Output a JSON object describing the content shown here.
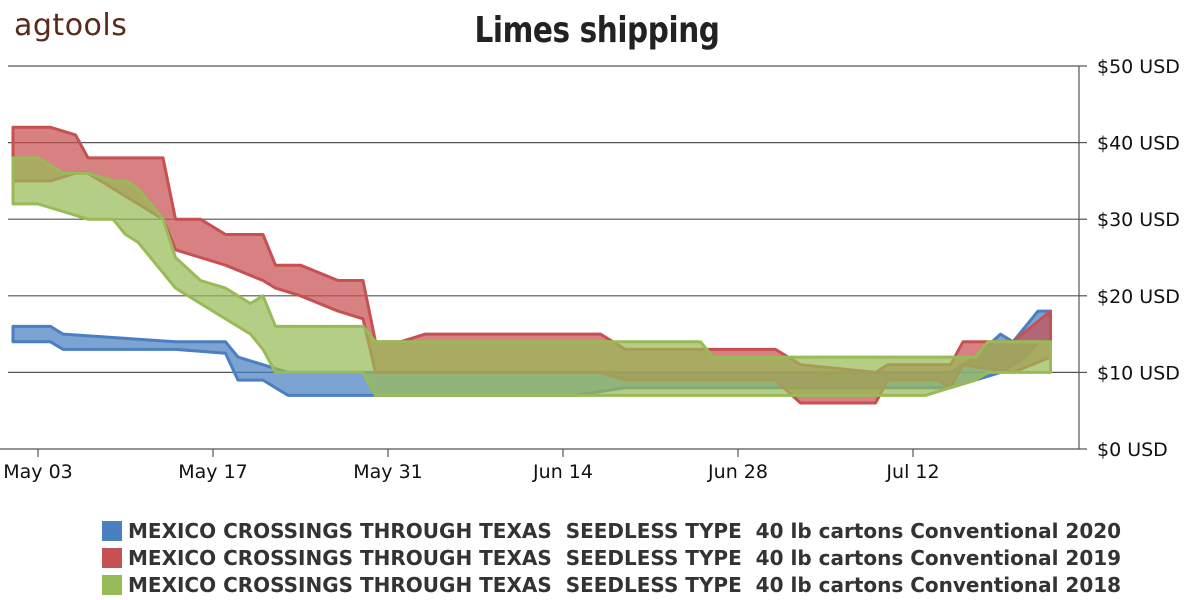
{
  "logo": "agtools",
  "chart_data": {
    "type": "area",
    "title": "Limes shipping",
    "xlabel": "",
    "ylabel": "",
    "ylim": [
      0,
      50
    ],
    "y_ticks": [
      "$0 USD",
      "$10 USD",
      "$20 USD",
      "$30 USD",
      "$40 USD",
      "$50 USD"
    ],
    "y_tick_values": [
      0,
      10,
      20,
      30,
      40,
      50
    ],
    "x_ticks": [
      "May 03",
      "May 17",
      "May 31",
      "Jun 14",
      "Jun 28",
      "Jul 12"
    ],
    "x_tick_days": [
      3,
      17,
      31,
      45,
      59,
      73
    ],
    "xlim_days": [
      1,
      85
    ],
    "grid": true,
    "legend_position": "bottom",
    "series": [
      {
        "name": "MEXICO CROSSINGS THROUGH TEXAS  SEEDLESS TYPE  40 lb cartons Conventional 2020",
        "color": "#4a7fc1",
        "points": [
          {
            "x": 1,
            "low": 14,
            "high": 16
          },
          {
            "x": 4,
            "low": 14,
            "high": 16
          },
          {
            "x": 5,
            "low": 13,
            "high": 15
          },
          {
            "x": 14,
            "low": 13,
            "high": 14
          },
          {
            "x": 18,
            "low": 12.5,
            "high": 14
          },
          {
            "x": 19,
            "low": 9,
            "high": 12
          },
          {
            "x": 21,
            "low": 9,
            "high": 11
          },
          {
            "x": 23,
            "low": 7,
            "high": 10
          },
          {
            "x": 29,
            "low": 7,
            "high": 10
          },
          {
            "x": 30,
            "low": 7,
            "high": 10
          },
          {
            "x": 46,
            "low": 7,
            "high": 10
          },
          {
            "x": 50,
            "low": 8,
            "high": 10
          },
          {
            "x": 76,
            "low": 8,
            "high": 10
          },
          {
            "x": 78,
            "low": 9,
            "high": 12
          },
          {
            "x": 80,
            "low": 10,
            "high": 15
          },
          {
            "x": 81,
            "low": 11,
            "high": 14
          },
          {
            "x": 82,
            "low": 12,
            "high": 16
          },
          {
            "x": 83,
            "low": 14,
            "high": 18
          },
          {
            "x": 84,
            "low": 14,
            "high": 18
          }
        ]
      },
      {
        "name": "MEXICO CROSSINGS THROUGH TEXAS  SEEDLESS TYPE  40 lb cartons Conventional 2019",
        "color": "#c75152",
        "points": [
          {
            "x": 1,
            "low": 35,
            "high": 42
          },
          {
            "x": 4,
            "low": 35,
            "high": 42
          },
          {
            "x": 6,
            "low": 36,
            "high": 41
          },
          {
            "x": 7,
            "low": 36,
            "high": 38
          },
          {
            "x": 11,
            "low": 32,
            "high": 38
          },
          {
            "x": 13,
            "low": 30,
            "high": 38
          },
          {
            "x": 14,
            "low": 26,
            "high": 30
          },
          {
            "x": 16,
            "low": 25,
            "high": 30
          },
          {
            "x": 18,
            "low": 24,
            "high": 28
          },
          {
            "x": 21,
            "low": 22,
            "high": 28
          },
          {
            "x": 22,
            "low": 21,
            "high": 24
          },
          {
            "x": 24,
            "low": 20,
            "high": 24
          },
          {
            "x": 27,
            "low": 18,
            "high": 22
          },
          {
            "x": 29,
            "low": 17,
            "high": 22
          },
          {
            "x": 30,
            "low": 10,
            "high": 14
          },
          {
            "x": 32,
            "low": 10,
            "high": 14
          },
          {
            "x": 34,
            "low": 10,
            "high": 15
          },
          {
            "x": 48,
            "low": 10,
            "high": 15
          },
          {
            "x": 50,
            "low": 9,
            "high": 13
          },
          {
            "x": 62,
            "low": 9,
            "high": 13
          },
          {
            "x": 64,
            "low": 6,
            "high": 11
          },
          {
            "x": 70,
            "low": 6,
            "high": 10
          },
          {
            "x": 71,
            "low": 9,
            "high": 11
          },
          {
            "x": 75,
            "low": 9,
            "high": 11
          },
          {
            "x": 76,
            "low": 8,
            "high": 11
          },
          {
            "x": 77,
            "low": 11,
            "high": 14
          },
          {
            "x": 81,
            "low": 10,
            "high": 14
          },
          {
            "x": 84,
            "low": 12,
            "high": 18
          }
        ]
      },
      {
        "name": "MEXICO CROSSINGS THROUGH TEXAS  SEEDLESS TYPE  40 lb cartons Conventional 2018",
        "color": "#99bb57",
        "points": [
          {
            "x": 1,
            "low": 32,
            "high": 38
          },
          {
            "x": 3,
            "low": 32,
            "high": 38
          },
          {
            "x": 5,
            "low": 31,
            "high": 36
          },
          {
            "x": 7,
            "low": 30,
            "high": 36
          },
          {
            "x": 9,
            "low": 30,
            "high": 35
          },
          {
            "x": 10,
            "low": 28,
            "high": 35
          },
          {
            "x": 11,
            "low": 27,
            "high": 34
          },
          {
            "x": 13,
            "low": 23,
            "high": 30
          },
          {
            "x": 14,
            "low": 21,
            "high": 25
          },
          {
            "x": 16,
            "low": 19,
            "high": 22
          },
          {
            "x": 18,
            "low": 17,
            "high": 21
          },
          {
            "x": 20,
            "low": 15,
            "high": 19
          },
          {
            "x": 21,
            "low": 13,
            "high": 20
          },
          {
            "x": 22,
            "low": 10,
            "high": 16
          },
          {
            "x": 29,
            "low": 10,
            "high": 16
          },
          {
            "x": 30,
            "low": 7,
            "high": 14
          },
          {
            "x": 48,
            "low": 7,
            "high": 14
          },
          {
            "x": 56,
            "low": 7,
            "high": 14
          },
          {
            "x": 57,
            "low": 7,
            "high": 12
          },
          {
            "x": 74,
            "low": 7,
            "high": 12
          },
          {
            "x": 76,
            "low": 8,
            "high": 12
          },
          {
            "x": 78,
            "low": 9,
            "high": 12
          },
          {
            "x": 79,
            "low": 10,
            "high": 14
          },
          {
            "x": 84,
            "low": 10,
            "high": 14
          }
        ]
      }
    ]
  }
}
